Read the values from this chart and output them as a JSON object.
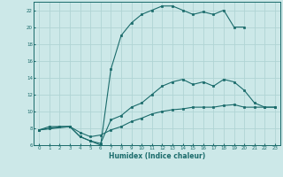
{
  "xlabel": "Humidex (Indice chaleur)",
  "bg_color": "#cce8e8",
  "line_color": "#1a6b6b",
  "grid_color": "#b0d4d4",
  "xlim": [
    -0.5,
    23.5
  ],
  "ylim": [
    6,
    23
  ],
  "xticks": [
    0,
    1,
    2,
    3,
    4,
    5,
    6,
    7,
    8,
    9,
    10,
    11,
    12,
    13,
    14,
    15,
    16,
    17,
    18,
    19,
    20,
    21,
    22,
    23
  ],
  "yticks": [
    6,
    8,
    10,
    12,
    14,
    16,
    18,
    20,
    22
  ],
  "curve1_x": [
    0,
    1,
    3,
    4,
    5,
    6,
    7,
    8,
    9,
    10,
    11,
    12,
    13,
    14,
    15,
    16,
    17,
    18,
    19,
    20
  ],
  "curve1_y": [
    7.8,
    8.2,
    8.2,
    7.0,
    6.5,
    6.0,
    15.0,
    19.0,
    20.5,
    21.5,
    22.0,
    22.5,
    22.5,
    22.0,
    21.5,
    21.8,
    21.5,
    22.0,
    20.0,
    20.0
  ],
  "curve2_x": [
    0,
    3,
    4,
    5,
    6,
    7,
    8,
    9,
    10,
    11,
    12,
    13,
    14,
    15,
    16,
    17,
    18,
    19,
    20,
    21,
    22,
    23
  ],
  "curve2_y": [
    7.8,
    8.2,
    7.0,
    6.5,
    6.2,
    9.0,
    9.5,
    10.5,
    11.0,
    12.0,
    13.0,
    13.5,
    13.8,
    13.2,
    13.5,
    13.0,
    13.8,
    13.5,
    12.5,
    11.0,
    10.5,
    10.5
  ],
  "curve3_x": [
    0,
    1,
    2,
    3,
    4,
    5,
    6,
    7,
    8,
    9,
    10,
    11,
    12,
    13,
    14,
    15,
    16,
    17,
    18,
    19,
    20,
    21,
    22,
    23
  ],
  "curve3_y": [
    7.8,
    8.0,
    8.2,
    8.2,
    7.5,
    7.0,
    7.2,
    7.8,
    8.2,
    8.8,
    9.2,
    9.7,
    10.0,
    10.2,
    10.3,
    10.5,
    10.5,
    10.5,
    10.7,
    10.8,
    10.5,
    10.5,
    10.5,
    10.5
  ]
}
